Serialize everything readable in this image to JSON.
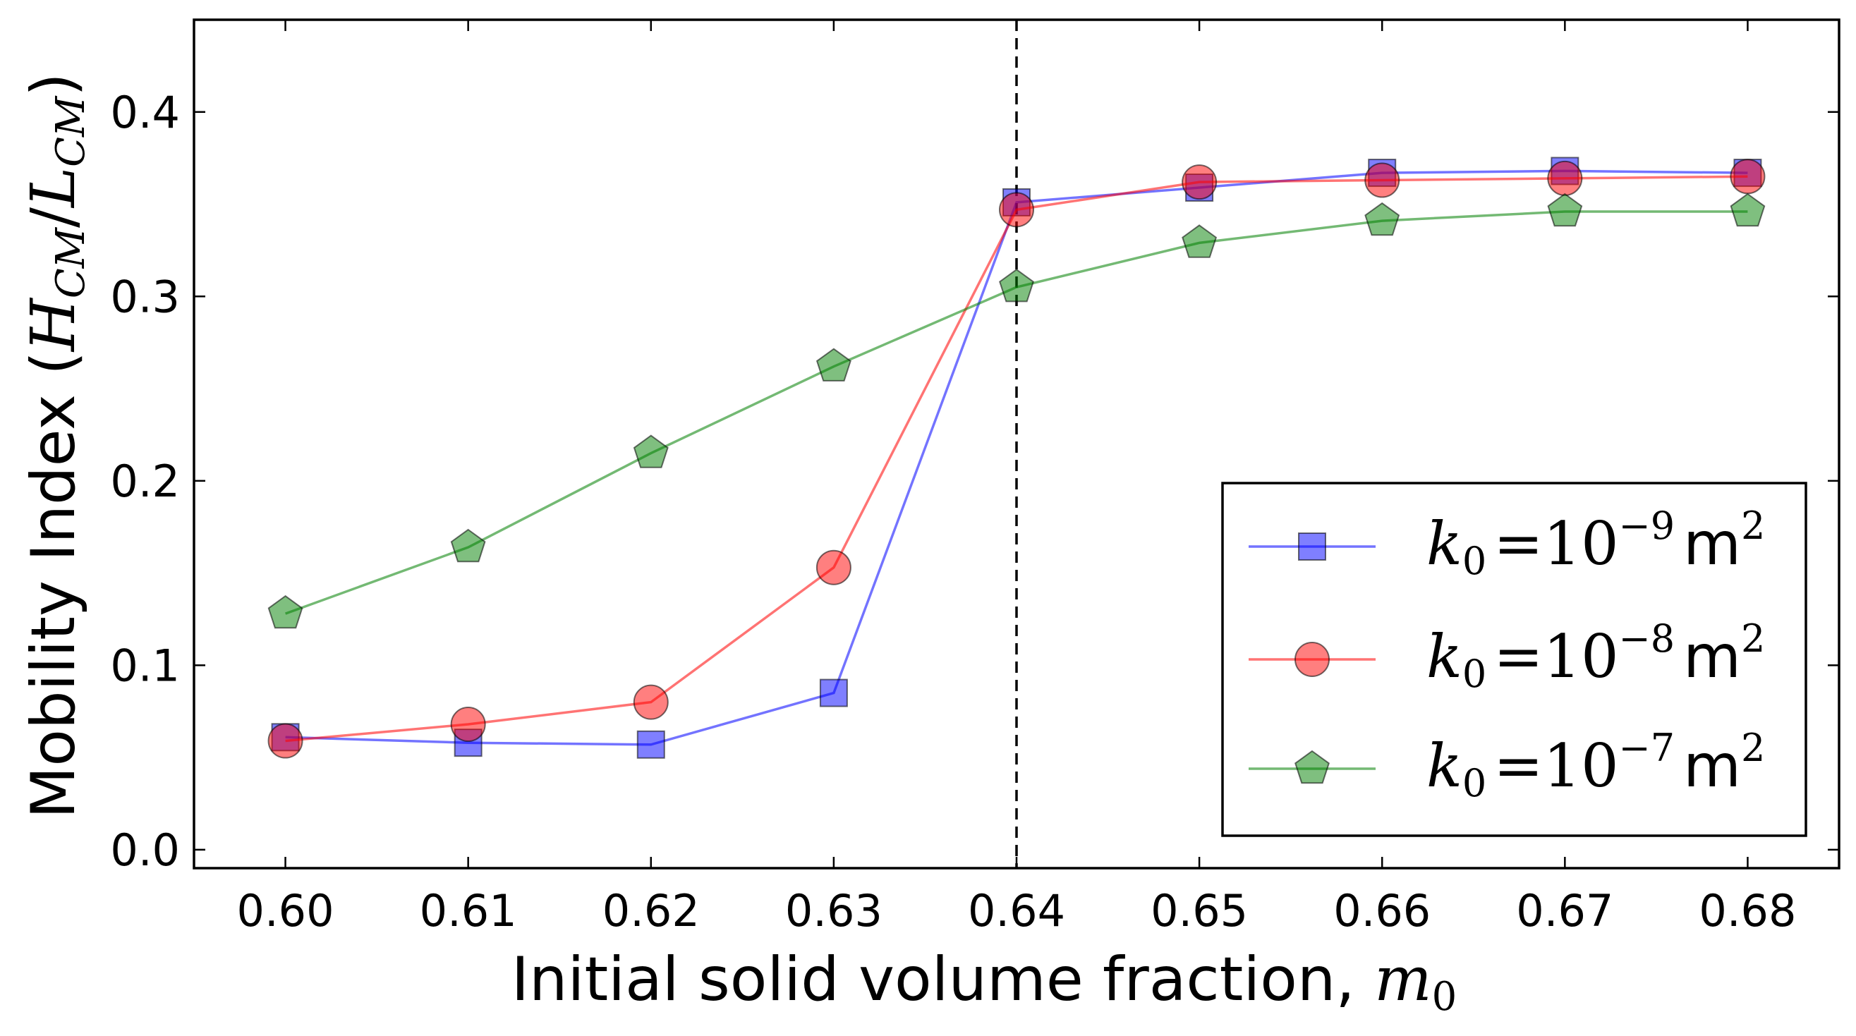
{
  "chart_data": {
    "type": "line",
    "xlabel_text": "Initial solid volume fraction, ",
    "xlabel_math": "m",
    "xlabel_math_sub": "0",
    "ylabel_text": "Mobility Index (",
    "ylabel_math_H": "H",
    "ylabel_math_H_sub": "CM",
    "ylabel_math_slash": "/",
    "ylabel_math_L": "L",
    "ylabel_math_L_sub": "CM",
    "ylabel_close": ")",
    "xlim": [
      0.595,
      0.685
    ],
    "ylim": [
      -0.01,
      0.45
    ],
    "x_ticks": [
      0.6,
      0.61,
      0.62,
      0.63,
      0.64,
      0.65,
      0.66,
      0.67,
      0.68
    ],
    "x_tick_labels": [
      "0.60",
      "0.61",
      "0.62",
      "0.63",
      "0.64",
      "0.65",
      "0.66",
      "0.67",
      "0.68"
    ],
    "y_ticks": [
      0.0,
      0.1,
      0.2,
      0.3,
      0.4
    ],
    "y_tick_labels": [
      "0.0",
      "0.1",
      "0.2",
      "0.3",
      "0.4"
    ],
    "vline_x": 0.64,
    "legend_position": "lower-right",
    "grid": false,
    "x": [
      0.6,
      0.61,
      0.62,
      0.63,
      0.64,
      0.65,
      0.66,
      0.67,
      0.68
    ],
    "series": [
      {
        "name": "k0 = 10^-9 m^2",
        "legend_k": "k",
        "legend_sub": "0",
        "legend_eq": "=10",
        "legend_exp": "−9",
        "legend_unit": "m",
        "legend_unit_exp": "2",
        "marker": "square",
        "color": "#0000ff",
        "values": [
          0.061,
          0.058,
          0.057,
          0.085,
          0.351,
          0.359,
          0.367,
          0.368,
          0.367
        ]
      },
      {
        "name": "k0 = 10^-8 m^2",
        "legend_k": "k",
        "legend_sub": "0",
        "legend_eq": "=10",
        "legend_exp": "−8",
        "legend_unit": "m",
        "legend_unit_exp": "2",
        "marker": "circle",
        "color": "#ff0000",
        "values": [
          0.059,
          0.068,
          0.08,
          0.153,
          0.347,
          0.362,
          0.363,
          0.364,
          0.365
        ]
      },
      {
        "name": "k0 = 10^-7 m^2",
        "legend_k": "k",
        "legend_sub": "0",
        "legend_eq": "=10",
        "legend_exp": "−7",
        "legend_unit": "m",
        "legend_unit_exp": "2",
        "marker": "pentagon",
        "color": "#008000",
        "values": [
          0.128,
          0.164,
          0.215,
          0.262,
          0.305,
          0.329,
          0.341,
          0.346,
          0.346
        ]
      }
    ]
  }
}
